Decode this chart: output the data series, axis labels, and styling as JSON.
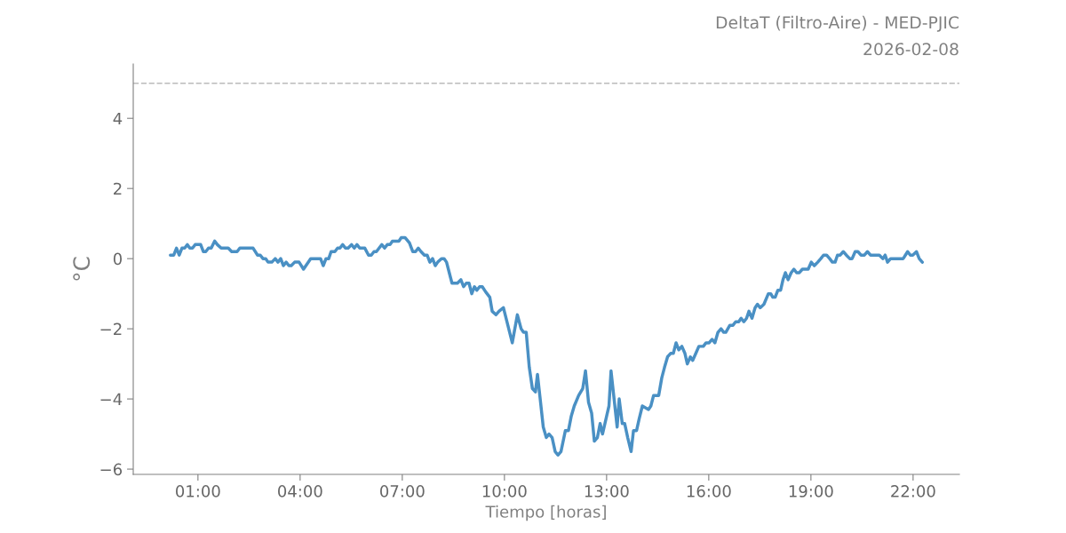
{
  "chart_data": {
    "type": "line",
    "title": "DeltaT (Filtro-Aire) - MED-PJIC",
    "subtitle": "2026-02-08",
    "xlabel": "Tiempo [horas]",
    "ylabel": "°C",
    "x": [
      0.19,
      0.29,
      0.37,
      0.45,
      0.53,
      0.61,
      0.69,
      0.76,
      0.84,
      0.92,
      1.08,
      1.16,
      1.23,
      1.31,
      1.39,
      1.49,
      1.57,
      1.68,
      1.89,
      1.99,
      2.15,
      2.23,
      2.62,
      2.75,
      2.83,
      2.91,
      2.99,
      3.06,
      3.17,
      3.27,
      3.35,
      3.43,
      3.51,
      3.59,
      3.67,
      3.74,
      3.84,
      3.97,
      4.1,
      4.31,
      4.6,
      4.68,
      4.76,
      4.84,
      4.91,
      5.02,
      5.1,
      5.17,
      5.25,
      5.33,
      5.41,
      5.51,
      5.59,
      5.67,
      5.75,
      5.9,
      6.01,
      6.09,
      6.17,
      6.24,
      6.32,
      6.4,
      6.48,
      6.56,
      6.64,
      6.71,
      6.9,
      6.97,
      7.08,
      7.21,
      7.31,
      7.39,
      7.47,
      7.55,
      7.65,
      7.73,
      7.81,
      7.89,
      7.97,
      8.04,
      8.15,
      8.23,
      8.3,
      8.38,
      8.46,
      8.62,
      8.72,
      8.8,
      8.88,
      8.96,
      9.04,
      9.12,
      9.19,
      9.27,
      9.35,
      9.45,
      9.57,
      9.64,
      9.75,
      9.84,
      9.97,
      10.1,
      10.23,
      10.38,
      10.49,
      10.56,
      10.64,
      10.73,
      10.82,
      10.91,
      10.97,
      11.05,
      11.14,
      11.23,
      11.31,
      11.4,
      11.49,
      11.57,
      11.66,
      11.79,
      11.88,
      11.96,
      12.05,
      12.18,
      12.3,
      12.38,
      12.47,
      12.56,
      12.64,
      12.73,
      12.81,
      12.88,
      13.01,
      13.07,
      13.13,
      13.22,
      13.31,
      13.37,
      13.46,
      13.53,
      13.62,
      13.72,
      13.79,
      13.88,
      13.96,
      14.05,
      14.14,
      14.23,
      14.3,
      14.38,
      14.53,
      14.62,
      14.7,
      14.79,
      14.88,
      14.96,
      15.04,
      15.12,
      15.21,
      15.3,
      15.37,
      15.46,
      15.53,
      15.62,
      15.71,
      15.84,
      15.92,
      16.01,
      16.1,
      16.18,
      16.27,
      16.36,
      16.44,
      16.5,
      16.62,
      16.71,
      16.79,
      16.88,
      16.95,
      17.03,
      17.11,
      17.18,
      17.27,
      17.36,
      17.43,
      17.51,
      17.62,
      17.75,
      17.82,
      17.88,
      17.95,
      18.03,
      18.11,
      18.18,
      18.25,
      18.33,
      18.42,
      18.5,
      18.58,
      18.66,
      18.75,
      18.92,
      19.01,
      19.1,
      19.2,
      19.29,
      19.37,
      19.46,
      19.55,
      19.63,
      19.71,
      19.78,
      19.86,
      19.95,
      20.04,
      20.14,
      20.21,
      20.3,
      20.38,
      20.47,
      20.57,
      20.66,
      20.75,
      21.01,
      21.11,
      21.18,
      21.25,
      21.34,
      21.71,
      21.84,
      21.92,
      21.99,
      22.1,
      22.18,
      22.27
    ],
    "series": [
      {
        "color": "#4a90c4",
        "values": [
          0.1,
          0.1,
          0.3,
          0.1,
          0.3,
          0.3,
          0.4,
          0.3,
          0.3,
          0.4,
          0.4,
          0.2,
          0.2,
          0.3,
          0.3,
          0.5,
          0.4,
          0.3,
          0.3,
          0.2,
          0.2,
          0.3,
          0.3,
          0.1,
          0.1,
          0.0,
          0.0,
          -0.1,
          -0.1,
          0.0,
          -0.1,
          0.0,
          -0.2,
          -0.1,
          -0.2,
          -0.2,
          -0.1,
          -0.1,
          -0.3,
          0.0,
          0.0,
          -0.2,
          0.0,
          0.0,
          0.2,
          0.2,
          0.3,
          0.3,
          0.4,
          0.3,
          0.3,
          0.4,
          0.3,
          0.4,
          0.3,
          0.3,
          0.1,
          0.1,
          0.2,
          0.2,
          0.3,
          0.4,
          0.3,
          0.4,
          0.4,
          0.5,
          0.5,
          0.6,
          0.6,
          0.45,
          0.2,
          0.2,
          0.3,
          0.2,
          0.1,
          0.1,
          -0.1,
          0.0,
          -0.2,
          -0.1,
          0.0,
          0.0,
          -0.1,
          -0.4,
          -0.7,
          -0.7,
          -0.6,
          -0.8,
          -0.7,
          -0.7,
          -1.0,
          -0.8,
          -0.9,
          -0.8,
          -0.8,
          -0.95,
          -1.1,
          -1.5,
          -1.6,
          -1.5,
          -1.4,
          -1.9,
          -2.4,
          -1.6,
          -2.0,
          -2.1,
          -2.1,
          -3.1,
          -3.7,
          -3.8,
          -3.3,
          -4.0,
          -4.8,
          -5.1,
          -5.0,
          -5.1,
          -5.5,
          -5.6,
          -5.5,
          -4.9,
          -4.9,
          -4.5,
          -4.2,
          -3.9,
          -3.7,
          -3.2,
          -4.1,
          -4.4,
          -5.2,
          -5.1,
          -4.7,
          -5.0,
          -4.45,
          -4.2,
          -3.2,
          -4.0,
          -4.8,
          -4.0,
          -4.7,
          -4.7,
          -5.1,
          -5.5,
          -4.9,
          -4.9,
          -4.55,
          -4.2,
          -4.25,
          -4.3,
          -4.2,
          -3.9,
          -3.9,
          -3.4,
          -3.1,
          -2.8,
          -2.7,
          -2.7,
          -2.4,
          -2.6,
          -2.5,
          -2.7,
          -3.0,
          -2.8,
          -2.9,
          -2.7,
          -2.5,
          -2.5,
          -2.4,
          -2.4,
          -2.3,
          -2.4,
          -2.1,
          -2.0,
          -2.1,
          -2.1,
          -1.9,
          -1.9,
          -1.8,
          -1.8,
          -1.7,
          -1.8,
          -1.7,
          -1.5,
          -1.7,
          -1.4,
          -1.3,
          -1.4,
          -1.3,
          -1.0,
          -1.0,
          -1.1,
          -1.1,
          -0.9,
          -0.9,
          -0.6,
          -0.4,
          -0.6,
          -0.4,
          -0.3,
          -0.4,
          -0.4,
          -0.3,
          -0.3,
          -0.1,
          -0.2,
          -0.1,
          0.0,
          0.1,
          0.1,
          0.0,
          -0.1,
          -0.1,
          0.1,
          0.1,
          0.2,
          0.1,
          0.0,
          0.0,
          0.2,
          0.2,
          0.1,
          0.1,
          0.2,
          0.1,
          0.1,
          0.0,
          0.1,
          -0.1,
          0.0,
          0.0,
          0.2,
          0.1,
          0.1,
          0.2,
          0.0,
          -0.1
        ]
      }
    ],
    "xlim": [
      -0.9,
      23.36
    ],
    "ylim": [
      -6.15,
      5.55
    ],
    "xticks": [
      {
        "value": 1,
        "label": "01:00"
      },
      {
        "value": 4,
        "label": "04:00"
      },
      {
        "value": 7,
        "label": "07:00"
      },
      {
        "value": 10,
        "label": "10:00"
      },
      {
        "value": 13,
        "label": "13:00"
      },
      {
        "value": 16,
        "label": "16:00"
      },
      {
        "value": 19,
        "label": "19:00"
      },
      {
        "value": 22,
        "label": "22:00"
      }
    ],
    "yticks": [
      -6,
      -4,
      -2,
      0,
      2,
      4
    ],
    "ref_lines": [
      {
        "axis": "y",
        "value": 5,
        "color": "#bbbbbb",
        "line_style": "dashed"
      }
    ],
    "grid": false,
    "marker": "none",
    "line_style": "solid"
  }
}
